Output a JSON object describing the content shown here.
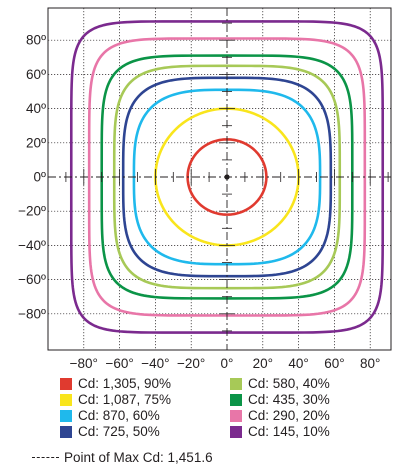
{
  "chart_data": {
    "type": "polar-contour",
    "grid": true,
    "xlim": [
      -100,
      100
    ],
    "ylim": [
      -100,
      100
    ],
    "x_ticks": [
      -80,
      -60,
      -40,
      -20,
      0,
      20,
      40,
      60,
      80
    ],
    "x_tick_labels": [
      "−80°",
      "−60°",
      "−40°",
      "−20°",
      "0°",
      "20°",
      "40°",
      "60°",
      "80°"
    ],
    "y_ticks": [
      80,
      60,
      40,
      20,
      0,
      -20,
      -40,
      -60,
      -80
    ],
    "y_tick_labels": [
      "80º",
      "60º",
      "40º",
      "20º",
      "0º",
      "−20º",
      "−40º",
      "−60º",
      "−80º"
    ],
    "series": [
      {
        "name": "Cd: 1,305, 90%",
        "color": "#e03a2f",
        "half_width_deg": 22,
        "half_height_deg": 22,
        "shape": "circle"
      },
      {
        "name": "Cd: 1,087, 75%",
        "color": "#f9e51c",
        "half_width_deg": 40,
        "half_height_deg": 40,
        "shape": "circle"
      },
      {
        "name": "Cd: 870, 60%",
        "color": "#1fb9ec",
        "half_width_deg": 52,
        "half_height_deg": 51,
        "shape": "rounded"
      },
      {
        "name": "Cd: 725, 50%",
        "color": "#2e4592",
        "half_width_deg": 58,
        "half_height_deg": 58,
        "shape": "rounded"
      },
      {
        "name": "Cd: 580, 40%",
        "color": "#a7c957",
        "half_width_deg": 63,
        "half_height_deg": 65,
        "shape": "rounded"
      },
      {
        "name": "Cd: 435, 30%",
        "color": "#0b9447",
        "half_width_deg": 70,
        "half_height_deg": 71,
        "shape": "rounded"
      },
      {
        "name": "Cd: 290, 20%",
        "color": "#e876a8",
        "half_width_deg": 77,
        "half_height_deg": 81,
        "shape": "rounded"
      },
      {
        "name": "Cd: 145, 10%",
        "color": "#7b2a8e",
        "half_width_deg": 87,
        "half_height_deg": 91,
        "shape": "rounded"
      }
    ],
    "max_point": {
      "label": "Point of Max Cd: 1,451.6",
      "x": 0,
      "y": 0
    }
  }
}
